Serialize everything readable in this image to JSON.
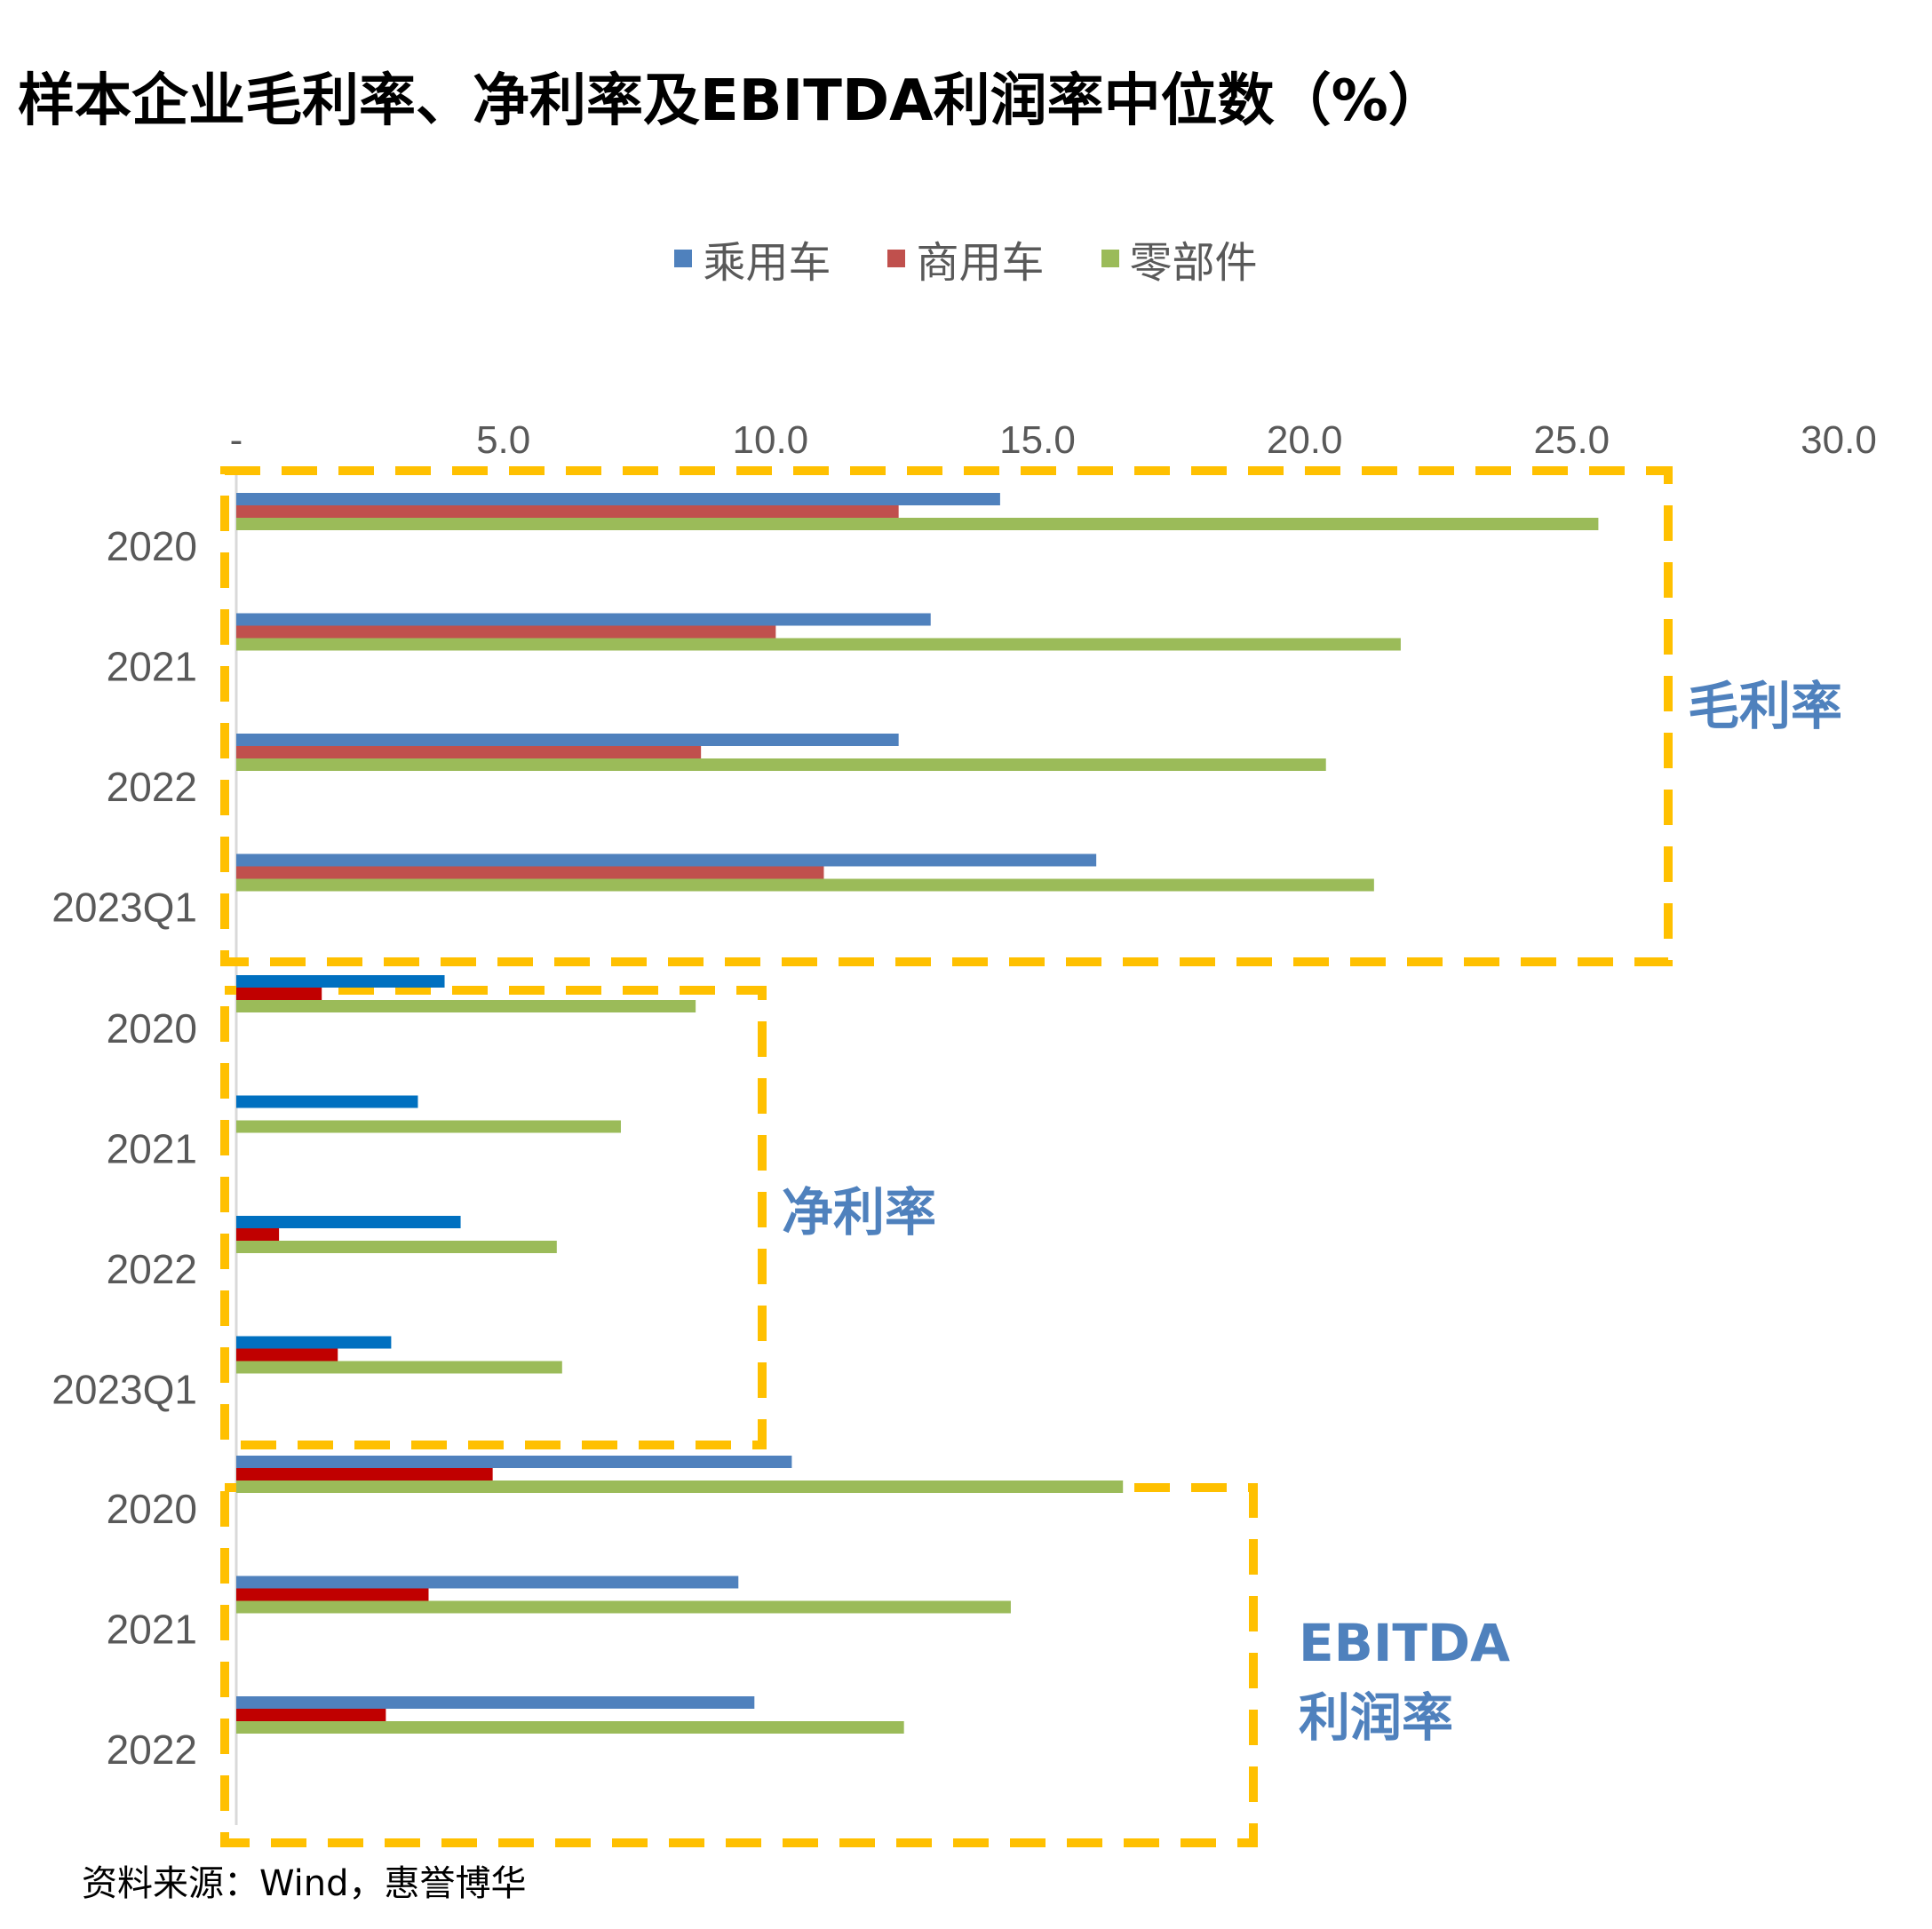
{
  "title": "样本企业毛利率、净利率及EBITDA利润率中位数（%）",
  "source": "资料来源：Wind，惠誉博华",
  "chart_data": {
    "type": "bar",
    "orientation": "horizontal",
    "xlim": [
      0,
      30
    ],
    "x_ticks": [
      "-",
      "5.0",
      "10.0",
      "15.0",
      "20.0",
      "25.0",
      "30.0"
    ],
    "legend": {
      "position": "top",
      "entries": [
        "乘用车",
        "商用车",
        "零部件"
      ]
    },
    "series_names": [
      "乘用车",
      "商用车",
      "零部件"
    ],
    "groups": [
      {
        "label": "毛利率",
        "categories": [
          "2020",
          "2021",
          "2022",
          "2023Q1"
        ],
        "colors": [
          "#4f81bd",
          "#c0504d",
          "#9bbb59"
        ],
        "series": [
          {
            "values": [
              14.3,
              13.0,
              12.4,
              16.1
            ]
          },
          {
            "values": [
              12.4,
              10.1,
              8.7,
              11.0
            ]
          },
          {
            "values": [
              25.5,
              21.8,
              20.4,
              21.3
            ]
          }
        ]
      },
      {
        "label": "净利率",
        "categories": [
          "2020",
          "2021",
          "2022",
          "2023Q1"
        ],
        "colors": [
          "#0070c0",
          "#c00000",
          "#9bbb59"
        ],
        "series": [
          {
            "values": [
              3.9,
              3.4,
              4.2,
              2.9
            ]
          },
          {
            "values": [
              1.6,
              0.0,
              0.8,
              1.9
            ]
          },
          {
            "values": [
              8.6,
              7.2,
              6.0,
              6.1
            ]
          }
        ]
      },
      {
        "label": "EBITDA\n利润率",
        "categories": [
          "2020",
          "2021",
          "2022"
        ],
        "colors": [
          "#4f81bd",
          "#c00000",
          "#9bbb59"
        ],
        "series": [
          {
            "values": [
              10.4,
              9.4,
              9.7
            ]
          },
          {
            "values": [
              4.8,
              3.6,
              2.8
            ]
          },
          {
            "values": [
              16.6,
              14.5,
              12.5
            ]
          }
        ]
      }
    ]
  }
}
